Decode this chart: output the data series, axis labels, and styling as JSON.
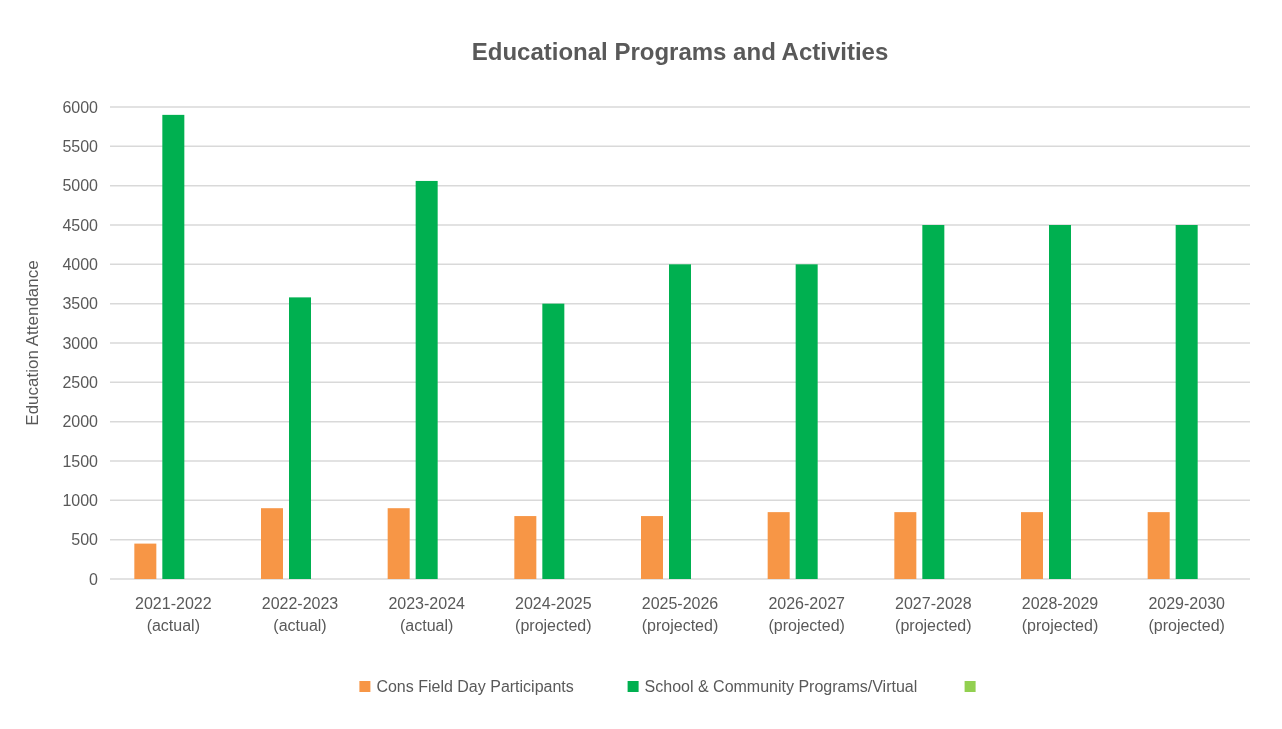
{
  "chart_data": {
    "type": "bar",
    "title": "Educational Programs and Activities",
    "ylabel": "Education Attendance",
    "categories": [
      "2021-2022 (actual)",
      "2022-2023 (actual)",
      "2023-2024 (actual)",
      "2024-2025 (projected)",
      "2025-2026 (projected)",
      "2026-2027 (projected)",
      "2027-2028 (projected)",
      "2028-2029 (projected)",
      "2029-2030 (projected)"
    ],
    "series": [
      {
        "name": "Cons Field Day Participants",
        "color": "#f79646",
        "values": [
          450,
          900,
          900,
          800,
          800,
          850,
          850,
          850,
          850
        ]
      },
      {
        "name": "School & Community Programs/Virtual",
        "color": "#00b050",
        "values": [
          5900,
          3580,
          5060,
          3500,
          4000,
          4000,
          4500,
          4500,
          4500
        ]
      },
      {
        "color": "#92d050",
        "values": [
          null,
          null,
          null,
          null,
          null,
          null,
          null,
          null,
          null
        ]
      }
    ],
    "ylim": [
      0,
      6000
    ],
    "yticks": [
      0,
      500,
      1000,
      1500,
      2000,
      2500,
      3000,
      3500,
      4000,
      4500,
      5000,
      5500,
      6000
    ],
    "grid": "y",
    "legend": "bottom"
  }
}
